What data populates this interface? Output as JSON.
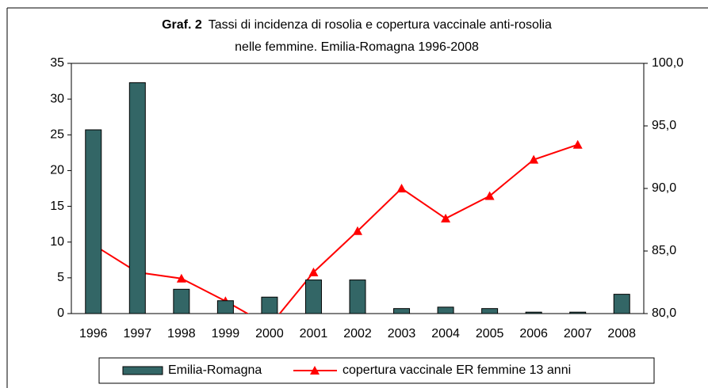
{
  "chart_data": {
    "type": "bar",
    "title_label": "Graf. 2",
    "title": "Tassi di incidenza di rosolia e copertura vaccinale anti-rosolia",
    "subtitle": "nelle femmine. Emilia-Romagna 1996-2008",
    "categories": [
      "1996",
      "1997",
      "1998",
      "1999",
      "2000",
      "2001",
      "2002",
      "2003",
      "2004",
      "2005",
      "2006",
      "2007",
      "2008"
    ],
    "series": [
      {
        "name": "Emilia-Romagna",
        "type": "bar",
        "color": "#336666",
        "values": [
          25.7,
          32.3,
          3.4,
          1.8,
          2.3,
          4.7,
          4.7,
          0.7,
          0.9,
          0.7,
          0.2,
          0.2,
          2.7
        ]
      },
      {
        "name": "copertura vaccinale ER femmine 13 anni",
        "type": "line",
        "color": "#ff0000",
        "axis": "y2",
        "values": [
          85.5,
          83.3,
          82.8,
          81.0,
          79.0,
          83.3,
          86.6,
          90.0,
          87.6,
          89.4,
          92.3,
          93.5,
          null
        ]
      }
    ],
    "ylim": [
      0,
      35
    ],
    "yticks": [
      0,
      5,
      10,
      15,
      20,
      25,
      30,
      35
    ],
    "y2lim": [
      80,
      100
    ],
    "y2ticks": [
      {
        "value": 80,
        "label": "80,0"
      },
      {
        "value": 85,
        "label": "85,0"
      },
      {
        "value": 90,
        "label": "90,0"
      },
      {
        "value": 95,
        "label": "95,0"
      },
      {
        "value": 100,
        "label": "100,0"
      }
    ],
    "legend": "bottom"
  }
}
